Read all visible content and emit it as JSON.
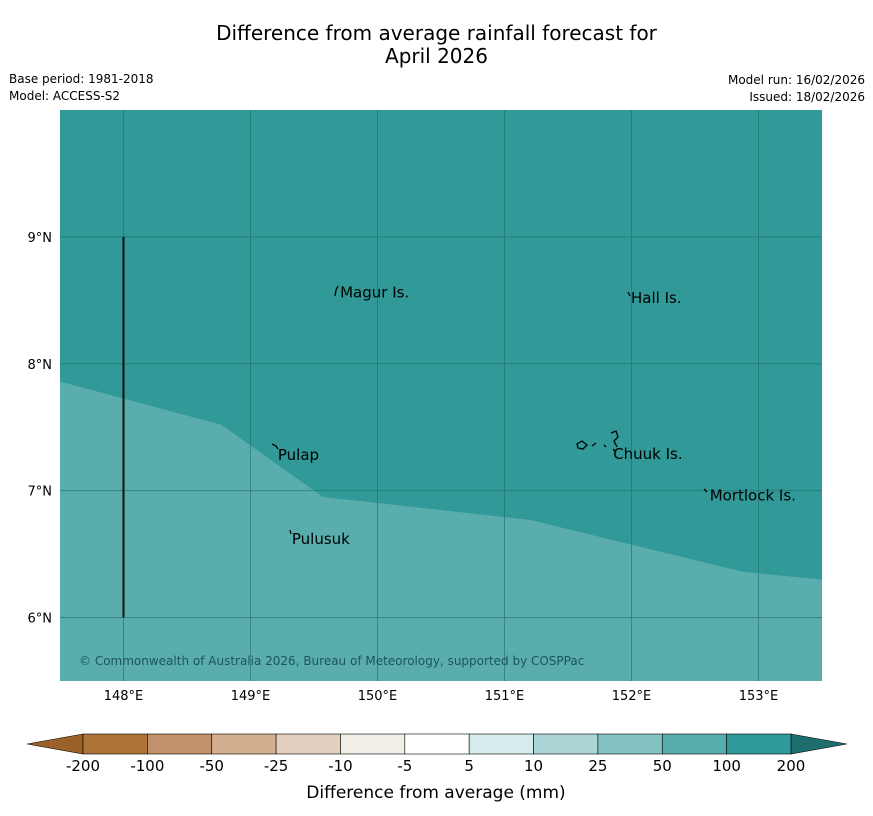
{
  "title_line1": "Difference from average rainfall forecast for",
  "title_line2": "April 2026",
  "meta_left": {
    "base_period": "Base period: 1981-2018",
    "model": "Model: ACCESS-S2"
  },
  "meta_right": {
    "model_run": "Model run: 16/02/2026",
    "issued": "Issued: 18/02/2026"
  },
  "map": {
    "lon_range": [
      147.5,
      153.5
    ],
    "lat_range": [
      5.5,
      10.0
    ],
    "lon_labels": [
      "148°E",
      "149°E",
      "150°E",
      "151°E",
      "152°E",
      "153°E"
    ],
    "lat_labels": [
      "9°N",
      "8°N",
      "7°N",
      "6°N"
    ],
    "places": [
      {
        "name": "Magur Is.",
        "lon": 149.69,
        "lat": 8.56
      },
      {
        "name": "Hall Is.",
        "lon": 151.98,
        "lat": 8.52
      },
      {
        "name": "Pulap",
        "lon": 149.2,
        "lat": 7.28
      },
      {
        "name": "Chuuk Is.",
        "lon": 151.84,
        "lat": 7.29
      },
      {
        "name": "Mortlock Is.",
        "lon": 152.6,
        "lat": 6.96
      },
      {
        "name": "Pulusuk",
        "lon": 149.31,
        "lat": 6.62
      }
    ],
    "categories": {
      "upper": "100 to 200 mm",
      "lower": "50 to 100 mm"
    },
    "copyright": "© Commonwealth of Australia 2026, Bureau of Meteorology, supported by COSPPac"
  },
  "legend": {
    "bounds": [
      "-200",
      "-100",
      "-50",
      "-25",
      "-10",
      "-5",
      "5",
      "10",
      "25",
      "50",
      "100",
      "200"
    ],
    "colors": [
      "#ae7337",
      "#c0916a",
      "#d3ae8f",
      "#e2cfbd",
      "#f1eee8",
      "#ffffff",
      "#d6ecec",
      "#acd6d6",
      "#82c2c2",
      "#58adad",
      "#30999a"
    ],
    "low_extend_color": "#9a6229",
    "high_extend_color": "#1f6e6e",
    "label": "Difference from average (mm)"
  },
  "colors": {
    "upper": "#319998",
    "lower": "#5aadad",
    "grid": "#1f6a6a",
    "text": "#000000"
  }
}
